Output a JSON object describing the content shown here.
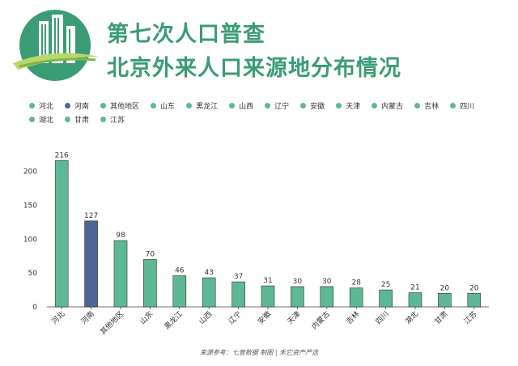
{
  "header": {
    "title_line1": "第七次人口普查",
    "title_line2": "北京外来人口来源地分布情况"
  },
  "footer": {
    "source": "来源参考：七普数据 制图 | 禾它资产严选"
  },
  "colors": {
    "accent": "#3a9c74",
    "bar_default": "#5db896",
    "bar_highlight": "#4d6693"
  },
  "chart_data": {
    "type": "bar",
    "categories": [
      "河北",
      "河南",
      "其他地区",
      "山东",
      "黑龙江",
      "山西",
      "辽宁",
      "安徽",
      "天津",
      "内蒙古",
      "吉林",
      "四川",
      "湖北",
      "甘肃",
      "江苏"
    ],
    "values": [
      216,
      127,
      98,
      70,
      46,
      43,
      37,
      31,
      30,
      30,
      28,
      25,
      21,
      20,
      20
    ],
    "highlight_category": "河南",
    "title": "",
    "xlabel": "",
    "ylabel": "",
    "ylim": [
      0,
      220
    ],
    "yticks": [
      0,
      50,
      100,
      150,
      200
    ],
    "grid": false,
    "legend_position": "top",
    "data_labels": true
  }
}
